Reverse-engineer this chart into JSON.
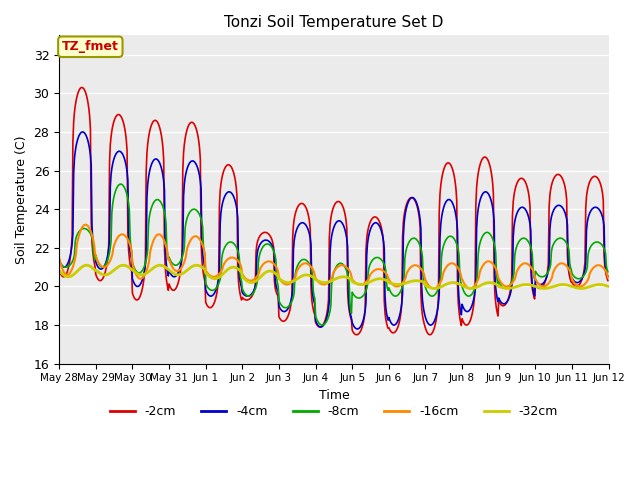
{
  "title": "Tonzi Soil Temperature Set D",
  "xlabel": "Time",
  "ylabel": "Soil Temperature (C)",
  "ylim": [
    16,
    33
  ],
  "yticks": [
    16,
    18,
    20,
    22,
    24,
    26,
    28,
    30,
    32
  ],
  "annotation_text": "TZ_fmet",
  "annotation_color": "#cc0000",
  "annotation_bg": "#ffffcc",
  "annotation_border": "#999900",
  "background_color": "#ebebeb",
  "line_colors": {
    "-2cm": "#dd0000",
    "-4cm": "#0000cc",
    "-8cm": "#00aa00",
    "-16cm": "#ff8800",
    "-32cm": "#cccc00"
  },
  "line_widths": {
    "-2cm": 1.2,
    "-4cm": 1.2,
    "-8cm": 1.2,
    "-16cm": 1.5,
    "-32cm": 2.0
  },
  "n_per_day": 48,
  "n_days": 15,
  "xtick_labels": [
    "May 28",
    "May 29",
    "May 30",
    "May 31",
    "Jun 1",
    "Jun 2",
    "Jun 3",
    "Jun 4",
    "Jun 5",
    "Jun 6",
    "Jun 7",
    "Jun 8",
    "Jun 9",
    "Jun 10",
    "Jun 11",
    "Jun 12"
  ],
  "series": {
    "-2cm": {
      "peaks": [
        30.3,
        28.9,
        28.6,
        28.5,
        26.3,
        22.8,
        24.3,
        24.4,
        23.6,
        24.6,
        26.4,
        26.7,
        25.6,
        25.8,
        25.7
      ],
      "troughs": [
        20.5,
        20.3,
        19.3,
        19.8,
        18.9,
        19.3,
        18.2,
        17.9,
        17.5,
        17.6,
        17.5,
        18.0,
        19.0,
        19.9,
        20.0
      ],
      "peak_phase": 0.62,
      "sharpness": 4.0
    },
    "-4cm": {
      "peaks": [
        28.0,
        27.0,
        26.6,
        26.5,
        24.9,
        22.4,
        23.3,
        23.4,
        23.3,
        24.6,
        24.5,
        24.9,
        24.1,
        24.2,
        24.1
      ],
      "troughs": [
        21.0,
        20.9,
        20.0,
        20.5,
        19.5,
        19.5,
        18.7,
        17.9,
        17.8,
        18.0,
        18.0,
        18.7,
        19.1,
        20.1,
        20.2
      ],
      "peak_phase": 0.64,
      "sharpness": 3.5
    },
    "-8cm": {
      "peaks": [
        23.0,
        25.3,
        24.5,
        24.0,
        22.3,
        22.2,
        21.4,
        21.2,
        21.5,
        22.5,
        22.6,
        22.8,
        22.5,
        22.5,
        22.3
      ],
      "troughs": [
        21.0,
        21.0,
        20.7,
        21.1,
        19.8,
        19.5,
        18.9,
        18.0,
        19.4,
        19.5,
        19.5,
        19.5,
        19.9,
        20.5,
        20.4
      ],
      "peak_phase": 0.68,
      "sharpness": 2.5
    },
    "-16cm": {
      "peaks": [
        23.2,
        22.7,
        22.7,
        22.6,
        21.5,
        21.3,
        21.2,
        21.1,
        20.9,
        21.1,
        21.2,
        21.3,
        21.2,
        21.2,
        21.1
      ],
      "troughs": [
        20.6,
        21.0,
        20.4,
        20.8,
        20.5,
        20.3,
        20.1,
        20.1,
        20.1,
        20.0,
        19.9,
        19.9,
        20.0,
        20.0,
        20.0
      ],
      "peak_phase": 0.72,
      "sharpness": 1.5
    },
    "-32cm": {
      "peaks": [
        21.1,
        21.1,
        21.1,
        21.1,
        21.0,
        20.8,
        20.6,
        20.5,
        20.4,
        20.3,
        20.2,
        20.2,
        20.1,
        20.1,
        20.1
      ],
      "troughs": [
        20.5,
        20.6,
        20.6,
        20.6,
        20.4,
        20.2,
        20.2,
        20.2,
        20.1,
        20.1,
        19.9,
        19.9,
        19.9,
        19.9,
        19.9
      ],
      "peak_phase": 0.75,
      "sharpness": 0.8
    }
  }
}
